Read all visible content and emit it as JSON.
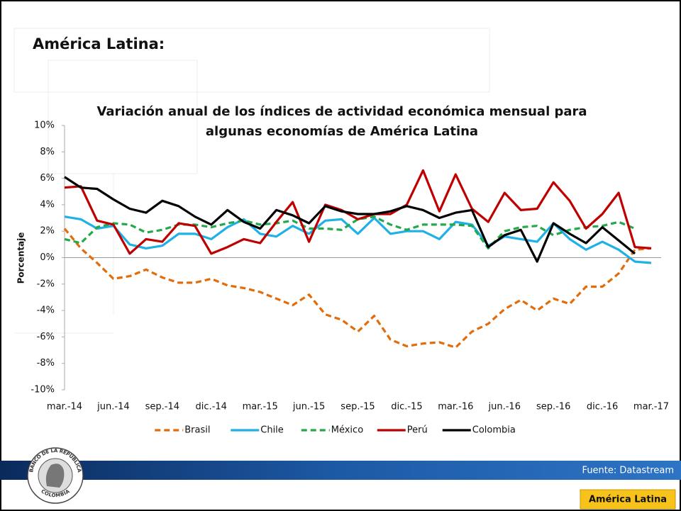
{
  "heading": "América Latina:",
  "source": "Fuente: Datastream",
  "footer_tab": "América Latina",
  "logo": {
    "top": "BANCO DE LA REPÚBLICA",
    "bottom": "COLOMBIA"
  },
  "chart_data": {
    "type": "line",
    "title": [
      "Variación anual de los índices de actividad económica mensual para",
      "algunas economías de América Latina"
    ],
    "y_label": "Porcentaje",
    "categories": [
      "mar.-14",
      null,
      null,
      "jun.-14",
      null,
      null,
      "sep.-14",
      null,
      null,
      "dic.-14",
      null,
      null,
      "mar.-15",
      null,
      null,
      "jun.-15",
      null,
      null,
      "sep.-15",
      null,
      null,
      "dic.-15",
      null,
      null,
      "mar.-16",
      null,
      null,
      "jun.-16",
      null,
      null,
      "sep.-16",
      null,
      null,
      "dic.-16",
      null,
      null,
      "mar.-17"
    ],
    "ylim": [
      -10,
      10
    ],
    "yticks": [
      {
        "value": -10,
        "label": "-10%"
      },
      {
        "value": -8,
        "label": "-8%"
      },
      {
        "value": -6,
        "label": "-6%"
      },
      {
        "value": -4,
        "label": "-4%"
      },
      {
        "value": -2,
        "label": "-2%"
      },
      {
        "value": 0,
        "label": "0%"
      },
      {
        "value": 2,
        "label": "2%"
      },
      {
        "value": 4,
        "label": "4%"
      },
      {
        "value": 6,
        "label": "6%"
      },
      {
        "value": 8,
        "label": "8%"
      },
      {
        "value": 10,
        "label": "10%"
      }
    ],
    "legend": "bottom",
    "series": [
      {
        "name": "Brasil",
        "color": "#e36c0a",
        "dashed": true,
        "values": [
          2.2,
          0.7,
          -0.4,
          -1.6,
          -1.4,
          -0.9,
          -1.5,
          -1.9,
          -1.9,
          -1.6,
          -2.1,
          -2.3,
          -2.6,
          -3.1,
          -3.6,
          -2.8,
          -4.3,
          -4.7,
          -5.6,
          -4.4,
          -6.2,
          -6.7,
          -6.5,
          -6.4,
          -6.8,
          -5.6,
          -5.0,
          -3.9,
          -3.2,
          -4.0,
          -3.1,
          -3.5,
          -2.2,
          -2.2,
          -1.2,
          0.6,
          0.7
        ]
      },
      {
        "name": "Chile",
        "color": "#1fb1e6",
        "dashed": false,
        "values": [
          3.1,
          2.9,
          2.2,
          2.4,
          1.0,
          0.7,
          0.9,
          1.8,
          1.8,
          1.4,
          2.3,
          2.9,
          1.8,
          1.6,
          2.4,
          1.8,
          2.8,
          2.9,
          1.8,
          3.0,
          1.8,
          2.0,
          2.0,
          1.4,
          2.7,
          2.5,
          0.9,
          1.6,
          1.4,
          1.2,
          2.6,
          1.4,
          0.6,
          1.2,
          0.6,
          -0.3,
          -0.4
        ]
      },
      {
        "name": "México",
        "color": "#23a94a",
        "dashed": true,
        "values": [
          1.4,
          1.1,
          2.3,
          2.6,
          2.5,
          1.9,
          2.1,
          2.5,
          2.5,
          2.3,
          2.6,
          2.8,
          2.5,
          2.6,
          2.8,
          2.2,
          2.2,
          2.1,
          2.9,
          3.1,
          2.5,
          2.1,
          2.5,
          2.5,
          2.5,
          2.4,
          0.7,
          2.0,
          2.3,
          2.4,
          1.7,
          2.1,
          2.3,
          2.4,
          2.7,
          2.2,
          null
        ]
      },
      {
        "name": "Perú",
        "color": "#c00000",
        "dashed": false,
        "values": [
          5.3,
          5.4,
          2.8,
          2.5,
          0.3,
          1.4,
          1.2,
          2.6,
          2.4,
          0.3,
          0.8,
          1.4,
          1.1,
          2.7,
          4.2,
          1.2,
          4.0,
          3.6,
          2.9,
          3.3,
          3.3,
          4.0,
          6.6,
          3.5,
          6.3,
          3.7,
          2.7,
          4.9,
          3.6,
          3.7,
          5.7,
          4.3,
          2.2,
          3.3,
          4.9,
          0.8,
          0.7
        ]
      },
      {
        "name": "Colombia",
        "color": "#000000",
        "dashed": false,
        "values": [
          6.1,
          5.3,
          5.2,
          4.4,
          3.7,
          3.4,
          4.3,
          3.9,
          3.1,
          2.5,
          3.6,
          2.7,
          2.2,
          3.6,
          3.2,
          2.6,
          3.9,
          3.5,
          3.3,
          3.3,
          3.5,
          3.9,
          3.6,
          3.0,
          3.4,
          3.6,
          0.8,
          1.7,
          2.1,
          -0.3,
          2.6,
          1.8,
          1.1,
          2.3,
          1.3,
          0.3,
          null
        ]
      }
    ]
  }
}
